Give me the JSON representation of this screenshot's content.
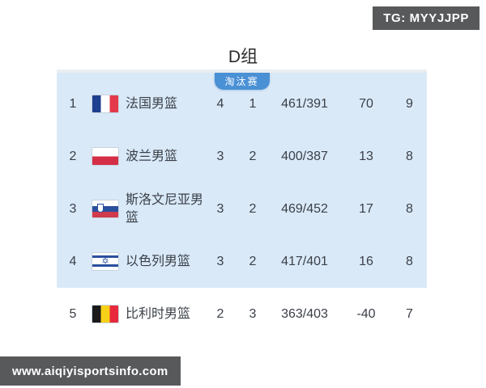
{
  "watermarks": {
    "tg_badge": "TG: MYYJJPP",
    "site_badge": "www.aiqiyisportsinfo.com"
  },
  "title": "D组",
  "standings": {
    "qualification_label": "淘汰赛",
    "rows": [
      {
        "rank": "1",
        "flag": "france",
        "team": "法国男篮",
        "wins": "4",
        "losses": "1",
        "points_for_against": "461/391",
        "point_diff": "70",
        "points": "9",
        "qualified": true
      },
      {
        "rank": "2",
        "flag": "poland",
        "team": "波兰男篮",
        "wins": "3",
        "losses": "2",
        "points_for_against": "400/387",
        "point_diff": "13",
        "points": "8",
        "qualified": true
      },
      {
        "rank": "3",
        "flag": "slovenia",
        "team": "斯洛文尼亚男篮",
        "wins": "3",
        "losses": "2",
        "points_for_against": "469/452",
        "point_diff": "17",
        "points": "8",
        "qualified": true
      },
      {
        "rank": "4",
        "flag": "israel",
        "team": "以色列男篮",
        "wins": "3",
        "losses": "2",
        "points_for_against": "417/401",
        "point_diff": "16",
        "points": "8",
        "qualified": true
      },
      {
        "rank": "5",
        "flag": "belgium",
        "team": "比利时男篮",
        "wins": "2",
        "losses": "3",
        "points_for_against": "363/403",
        "point_diff": "-40",
        "points": "7",
        "qualified": false
      }
    ]
  },
  "colors": {
    "panel_bg": "#d9e9f8",
    "tab_bg": "#4a90d5",
    "badge_bg": "#58595b",
    "text": "#3b4048",
    "title_text": "#2b2b2b"
  }
}
